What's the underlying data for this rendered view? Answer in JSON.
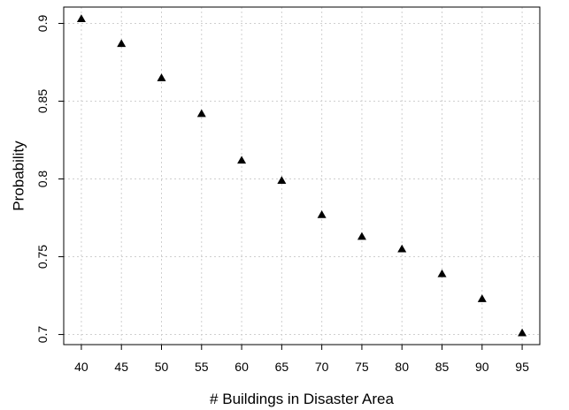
{
  "chart_data": {
    "type": "scatter",
    "title": "",
    "xlabel": "# Buildings in Disaster Area",
    "ylabel": "Probability",
    "x": [
      40,
      45,
      50,
      55,
      60,
      65,
      70,
      75,
      80,
      85,
      90,
      95
    ],
    "y": [
      0.903,
      0.887,
      0.865,
      0.842,
      0.812,
      0.799,
      0.777,
      0.763,
      0.755,
      0.739,
      0.723,
      0.701
    ],
    "x_ticks": [
      40,
      45,
      50,
      55,
      60,
      65,
      70,
      75,
      80,
      85,
      90,
      95
    ],
    "y_ticks": [
      0.7,
      0.75,
      0.8,
      0.85,
      0.9
    ],
    "x_tick_labels": [
      "40",
      "45",
      "50",
      "55",
      "60",
      "65",
      "70",
      "75",
      "80",
      "85",
      "90",
      "95"
    ],
    "y_tick_labels": [
      "0.7",
      "0.75",
      "0.8",
      "0.85",
      "0.9"
    ],
    "xlim": [
      37.8,
      97.2
    ],
    "ylim": [
      0.6935,
      0.9105
    ],
    "grid": true,
    "marker": "triangle",
    "marker_color": "#000000"
  }
}
